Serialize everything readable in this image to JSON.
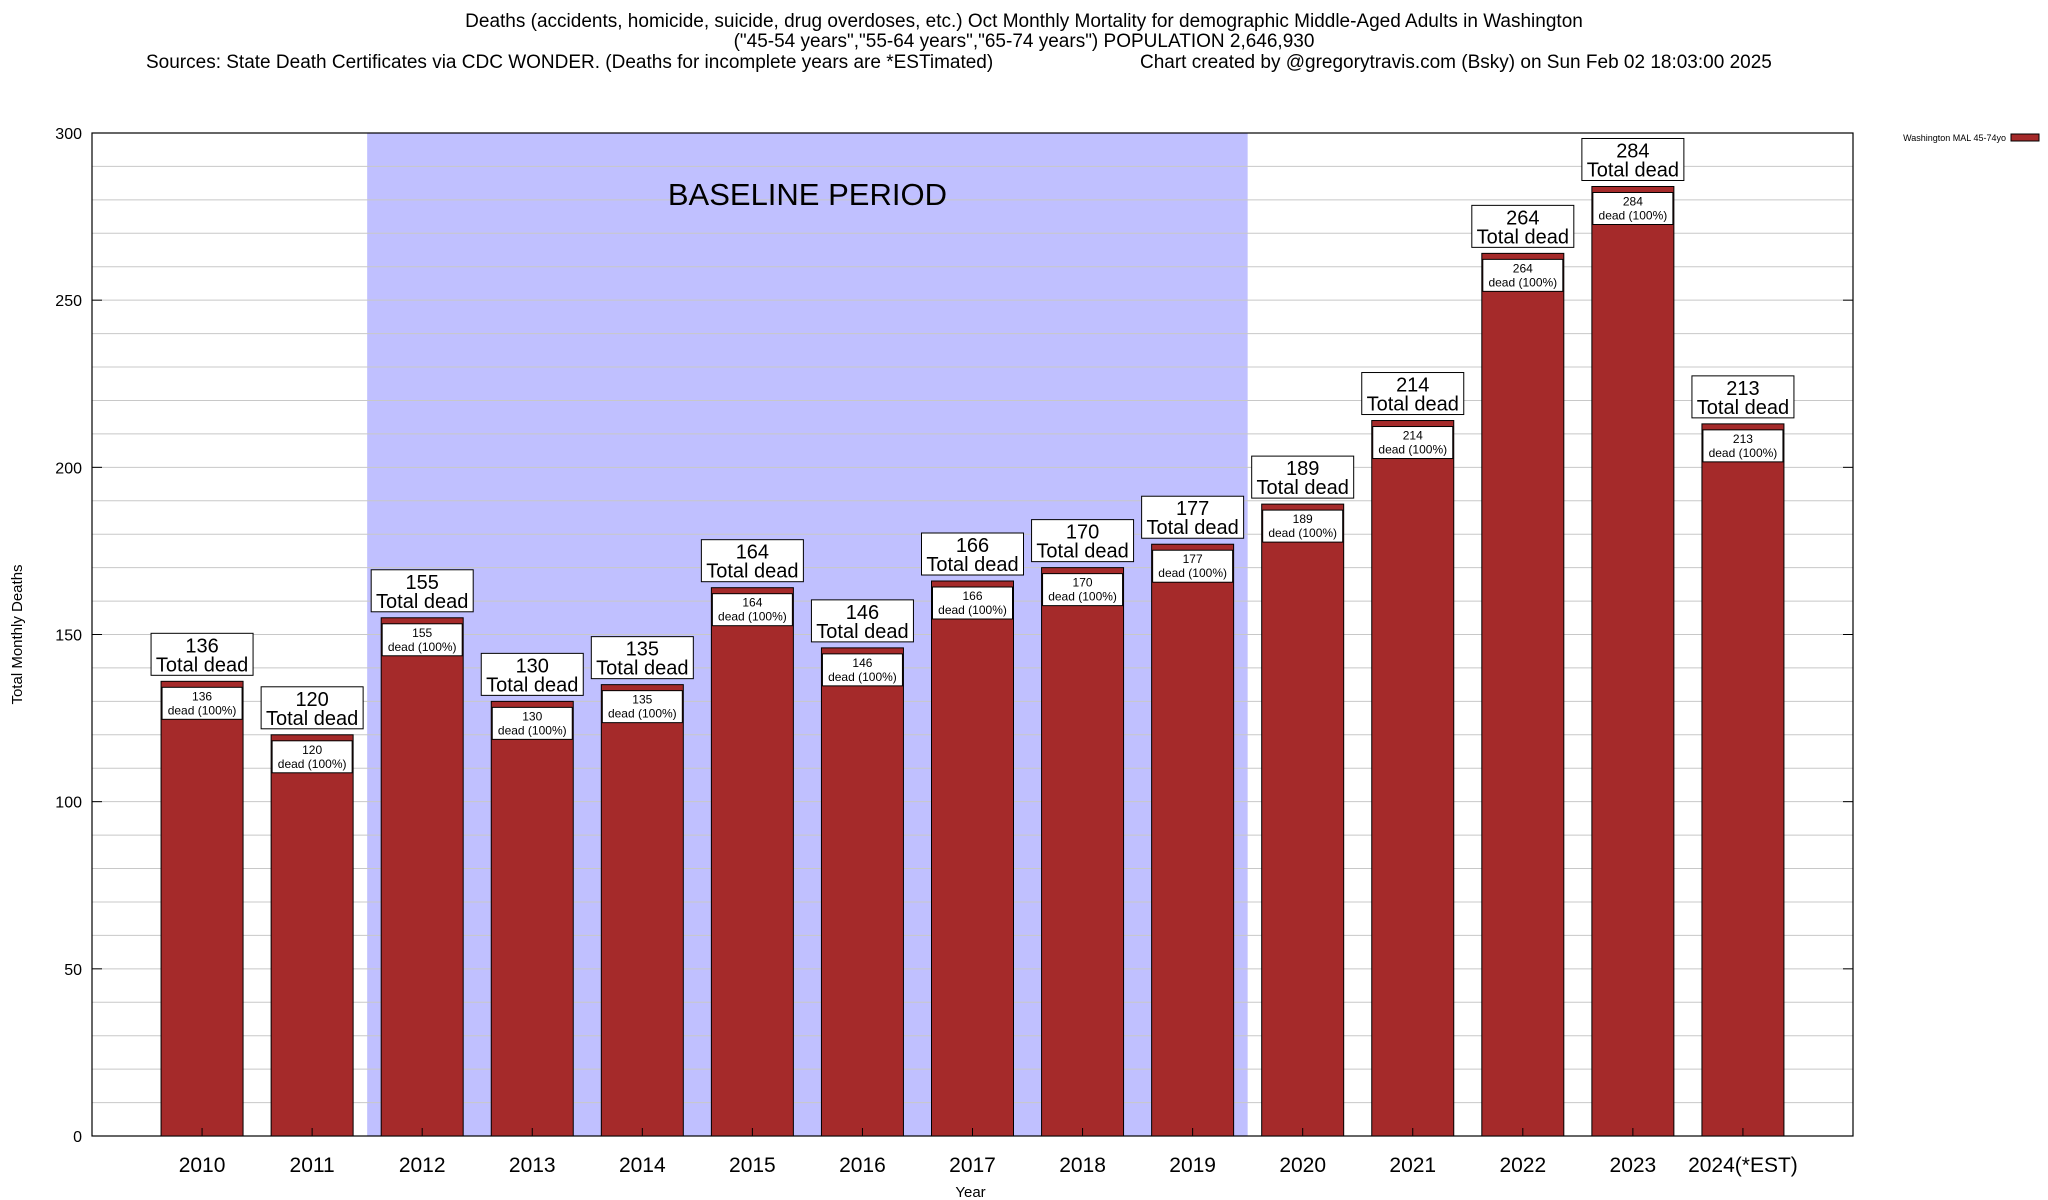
{
  "header": {
    "title_line1": "Deaths (accidents, homicide, suicide, drug overdoses, etc.) Oct Monthly Mortality for demographic Middle-Aged Adults in Washington",
    "title_line2": "(\"45-54 years\",\"55-64 years\",\"65-74 years\") POPULATION 2,646,930",
    "sources": "Sources: State Death Certificates via CDC WONDER. (Deaths for incomplete years are *ESTimated)",
    "credit": "Chart created by @gregorytravis.com (Bsky) on Sun Feb 02 18:03:00 2025"
  },
  "colors": {
    "bar": "#a52a2a",
    "baseline_shade": "#c0c0ff",
    "grid": "#c8c8c8"
  },
  "chart_data": {
    "type": "bar",
    "xlabel": "Year",
    "ylabel": "Total Monthly Deaths",
    "ylim": [
      0,
      300
    ],
    "yticks": [
      0,
      50,
      100,
      150,
      200,
      250,
      300
    ],
    "grid": true,
    "legend_position": "top-right",
    "categories": [
      "2010",
      "2011",
      "2012",
      "2013",
      "2014",
      "2015",
      "2016",
      "2017",
      "2018",
      "2019",
      "2020",
      "2021",
      "2022",
      "2023",
      "2024(*EST)"
    ],
    "series": [
      {
        "name": "Washington MAL 45-74yo",
        "values": [
          136,
          120,
          155,
          130,
          135,
          164,
          146,
          166,
          170,
          177,
          189,
          214,
          264,
          284,
          213
        ]
      }
    ],
    "bar_label_suffix": "Total dead",
    "inner_label_suffix": "dead (100%)",
    "baseline": {
      "label": "BASELINE PERIOD",
      "from": "2012",
      "to": "2019"
    }
  }
}
